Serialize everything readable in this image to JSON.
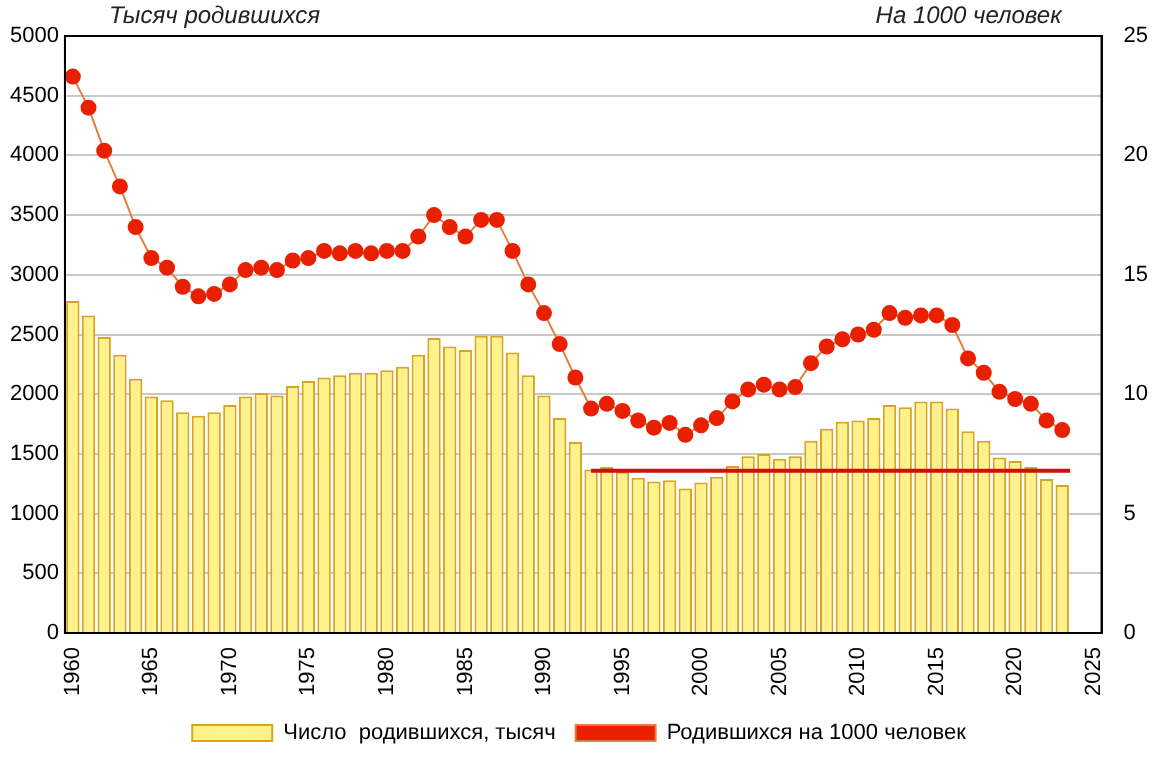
{
  "chart_data": {
    "type": "bar",
    "ylabel": "Тысяч родившихся",
    "y2label": "На 1000 человек",
    "x": [
      1960,
      1961,
      1962,
      1963,
      1964,
      1965,
      1966,
      1967,
      1968,
      1969,
      1970,
      1971,
      1972,
      1973,
      1974,
      1975,
      1976,
      1977,
      1978,
      1979,
      1980,
      1981,
      1982,
      1983,
      1984,
      1985,
      1986,
      1987,
      1988,
      1989,
      1990,
      1991,
      1992,
      1993,
      1994,
      1995,
      1996,
      1997,
      1998,
      1999,
      2000,
      2001,
      2002,
      2003,
      2004,
      2005,
      2006,
      2007,
      2008,
      2009,
      2010,
      2011,
      2012,
      2013,
      2014,
      2015,
      2016,
      2017,
      2018,
      2019,
      2020,
      2021,
      2022,
      2023
    ],
    "series": [
      {
        "name": "Число  родившихся, тысяч",
        "color": "#fff28c",
        "values": [
          2780,
          2660,
          2480,
          2330,
          2130,
          1980,
          1950,
          1850,
          1820,
          1850,
          1910,
          1980,
          2010,
          1990,
          2070,
          2110,
          2140,
          2160,
          2180,
          2180,
          2200,
          2230,
          2330,
          2470,
          2400,
          2370,
          2490,
          2490,
          2350,
          2160,
          1990,
          1800,
          1600,
          1370,
          1390,
          1350,
          1300,
          1270,
          1280,
          1210,
          1260,
          1310,
          1400,
          1480,
          1500,
          1460,
          1480,
          1610,
          1710,
          1770,
          1780,
          1800,
          1910,
          1890,
          1940,
          1940,
          1880,
          1690,
          1610,
          1470,
          1440,
          1390,
          1290,
          1240
        ]
      },
      {
        "name": "Родившихся на 1000 человек",
        "type": "line",
        "axis": "y2",
        "marker": "circle",
        "color": "#e82000",
        "values": [
          23.3,
          22.0,
          20.2,
          18.7,
          17.0,
          15.7,
          15.3,
          14.5,
          14.1,
          14.2,
          14.6,
          15.2,
          15.3,
          15.2,
          15.6,
          15.7,
          16.0,
          15.9,
          16.0,
          15.9,
          16.0,
          16.0,
          16.6,
          17.5,
          17.0,
          16.6,
          17.3,
          17.3,
          16.0,
          14.6,
          13.4,
          12.1,
          10.7,
          9.4,
          9.6,
          9.3,
          8.9,
          8.6,
          8.8,
          8.3,
          8.7,
          9.0,
          9.7,
          10.2,
          10.4,
          10.2,
          10.3,
          11.3,
          12.0,
          12.3,
          12.5,
          12.7,
          13.4,
          13.2,
          13.3,
          13.3,
          12.9,
          11.5,
          10.9,
          10.1,
          9.8,
          9.6,
          8.9,
          8.5
        ]
      },
      {
        "type": "line",
        "marker": "none",
        "color": "#cc1010",
        "x": [
          1993,
          2023.5
        ],
        "values": [
          1360,
          1360
        ]
      }
    ],
    "xlim": [
      1959.5,
      2025.5
    ],
    "xticks": [
      1960,
      1965,
      1970,
      1975,
      1980,
      1985,
      1990,
      1995,
      2000,
      2005,
      2010,
      2015,
      2020,
      2025
    ],
    "ylim": [
      0,
      5000
    ],
    "yticks": [
      0,
      500,
      1000,
      1500,
      2000,
      2500,
      3000,
      3500,
      4000,
      4500,
      5000
    ],
    "y2lim": [
      0,
      25
    ],
    "y2ticks": [
      0,
      5,
      10,
      15,
      20,
      25
    ],
    "grid": "y",
    "legend": "bottom"
  }
}
